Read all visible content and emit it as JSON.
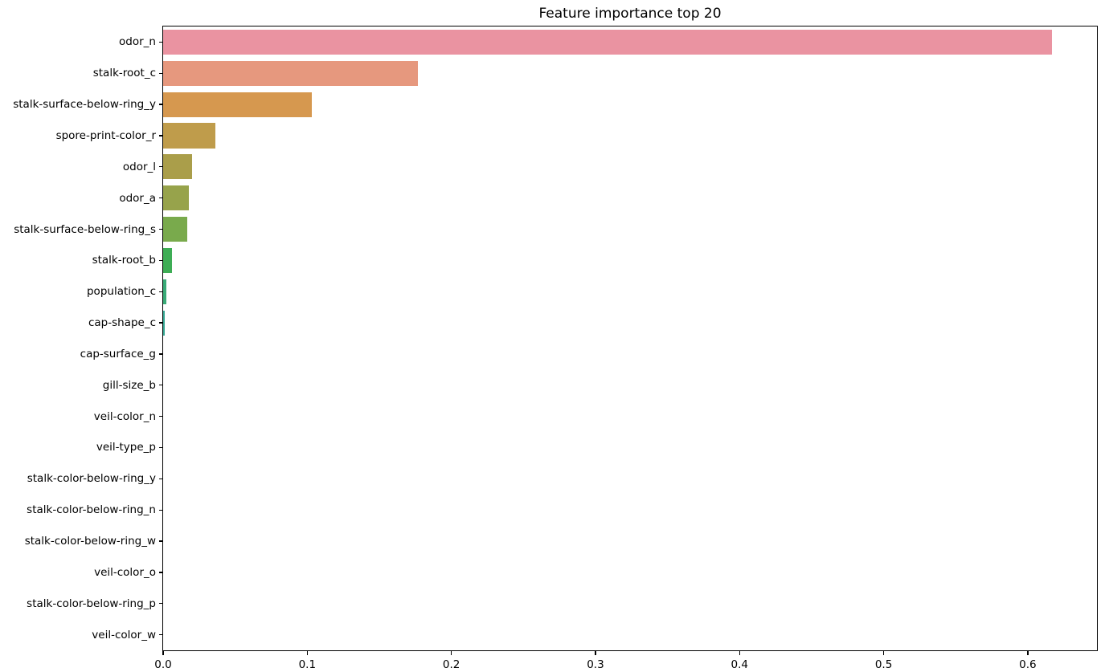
{
  "chart_data": {
    "type": "bar",
    "orientation": "horizontal",
    "title": "Feature importance top 20",
    "categories": [
      "odor_n",
      "stalk-root_c",
      "stalk-surface-below-ring_y",
      "spore-print-color_r",
      "odor_l",
      "odor_a",
      "stalk-surface-below-ring_s",
      "stalk-root_b",
      "population_c",
      "cap-shape_c",
      "cap-surface_g",
      "gill-size_b",
      "veil-color_n",
      "veil-type_p",
      "stalk-color-below-ring_y",
      "stalk-color-below-ring_n",
      "stalk-color-below-ring_w",
      "veil-color_o",
      "stalk-color-below-ring_p",
      "veil-color_w"
    ],
    "values": [
      0.617,
      0.177,
      0.103,
      0.036,
      0.02,
      0.018,
      0.017,
      0.006,
      0.002,
      0.001,
      0,
      0,
      0,
      0,
      0,
      0,
      0,
      0,
      0,
      0
    ],
    "bar_colors": [
      "#ea93a1",
      "#e6987e",
      "#d6984f",
      "#bf9c4b",
      "#aa9e4a",
      "#97a34b",
      "#79aa4c",
      "#3ead55",
      "#39ab77",
      "#37a994",
      null,
      null,
      null,
      null,
      null,
      null,
      null,
      null,
      null,
      null
    ],
    "xlabel": "",
    "ylabel": "",
    "xlim": [
      0,
      0.648
    ],
    "x_tick_values": [
      0.0,
      0.1,
      0.2,
      0.3,
      0.4,
      0.5,
      0.6
    ],
    "x_tick_labels": [
      "0.0",
      "0.1",
      "0.2",
      "0.3",
      "0.4",
      "0.5",
      "0.6"
    ],
    "grid": false,
    "legend_position": "none",
    "bar_fraction": 0.8
  }
}
